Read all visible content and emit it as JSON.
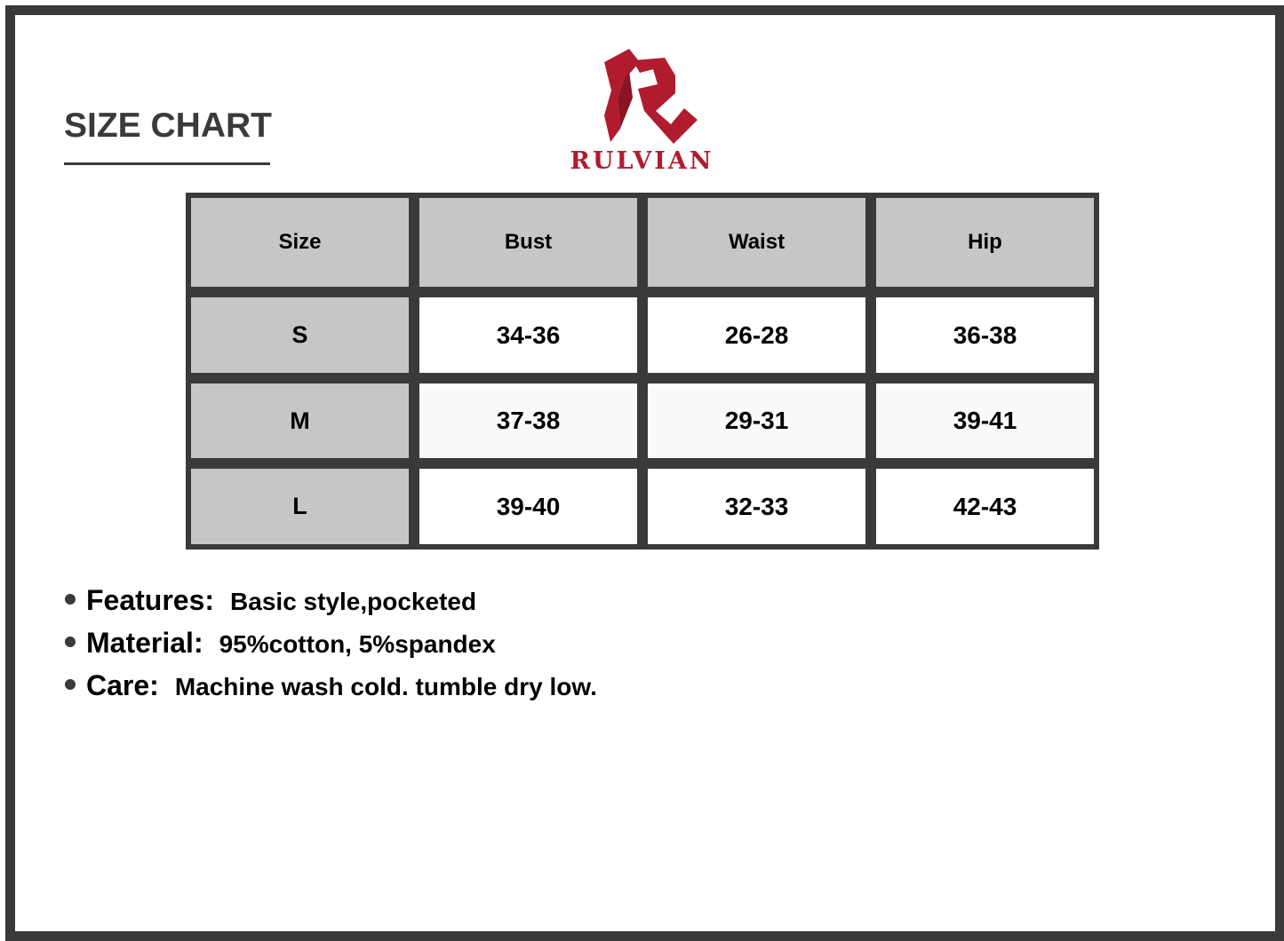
{
  "title": "SIZE CHART",
  "brand": {
    "name": "RULVIAN",
    "color": "#b01c2e"
  },
  "table": {
    "headers": [
      "Size",
      "Bust",
      "Waist",
      "Hip"
    ],
    "rows": [
      [
        "S",
        "34-36",
        "26-28",
        "36-38"
      ],
      [
        "M",
        "37-38",
        "29-31",
        "39-41"
      ],
      [
        "L",
        "39-40",
        "32-33",
        "42-43"
      ]
    ]
  },
  "details": [
    {
      "label": "Features:",
      "text": "Basic style,pocketed"
    },
    {
      "label": "Material:",
      "text": "95%cotton, 5%spandex"
    },
    {
      "label": "Care:",
      "text": "Machine wash cold. tumble dry low."
    }
  ]
}
